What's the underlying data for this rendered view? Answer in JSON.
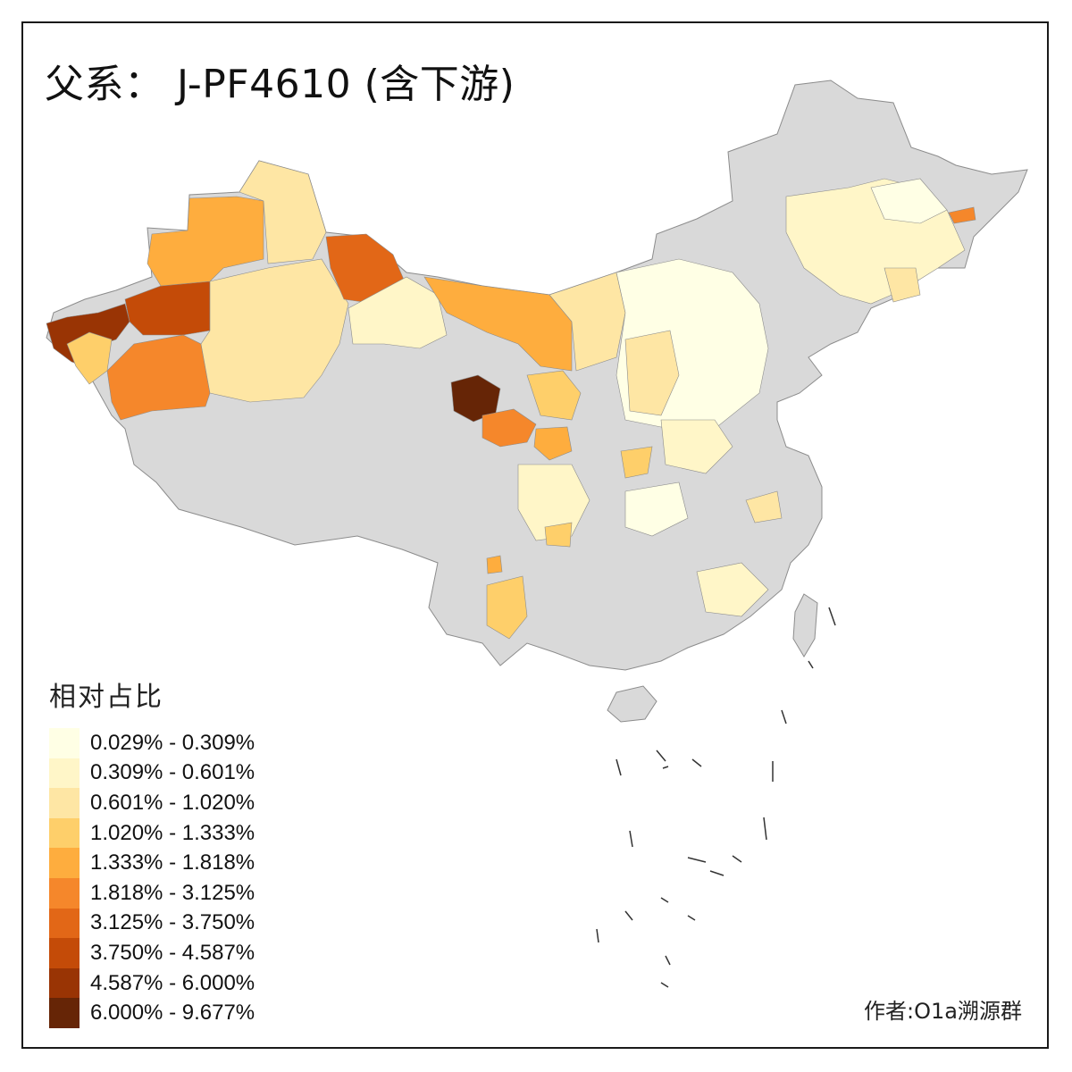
{
  "title": "父系： J-PF4610 (含下游)",
  "credit": "作者:O1a溯源群",
  "legend": {
    "title": "相对占比",
    "items": [
      {
        "label": "0.029% - 0.309%",
        "color": "#FFFFE5"
      },
      {
        "label": "0.309% - 0.601%",
        "color": "#FFF6C8"
      },
      {
        "label": "0.601% - 1.020%",
        "color": "#FEE6A4"
      },
      {
        "label": "1.020% - 1.333%",
        "color": "#FECF6A"
      },
      {
        "label": "1.333% - 1.818%",
        "color": "#FEAD3E"
      },
      {
        "label": "1.818% - 3.125%",
        "color": "#F5872B"
      },
      {
        "label": "3.125% - 3.750%",
        "color": "#E26717"
      },
      {
        "label": "3.750% - 4.587%",
        "color": "#C44B08"
      },
      {
        "label": "4.587% - 6.000%",
        "color": "#993404"
      },
      {
        "label": "6.000% - 9.677%",
        "color": "#662506"
      }
    ]
  },
  "colors": {
    "no_data": "#D9D9D9",
    "border": "#8C8C8C",
    "island_outline": "#333333"
  },
  "map_regions": [
    {
      "name": "northwest-xinjiang-west",
      "bin": 8
    },
    {
      "name": "xinjiang-kashgar-area",
      "bin": 7
    },
    {
      "name": "xinjiang-south-oasis",
      "bin": 5
    },
    {
      "name": "xinjiang-north-west",
      "bin": 4
    },
    {
      "name": "xinjiang-north",
      "bin": 2
    },
    {
      "name": "xinjiang-east",
      "bin": 6
    },
    {
      "name": "xinjiang-central",
      "bin": 2
    },
    {
      "name": "inner-mongolia-west",
      "bin": 4
    },
    {
      "name": "gansu-corridor",
      "bin": 1
    },
    {
      "name": "qinghai-core",
      "bin": 9
    },
    {
      "name": "qinghai-east",
      "bin": 5
    },
    {
      "name": "ningxia-inner-mongolia",
      "bin": 4
    },
    {
      "name": "north-china-plain",
      "bin": 0
    },
    {
      "name": "northeast",
      "bin": 1
    }
  ]
}
